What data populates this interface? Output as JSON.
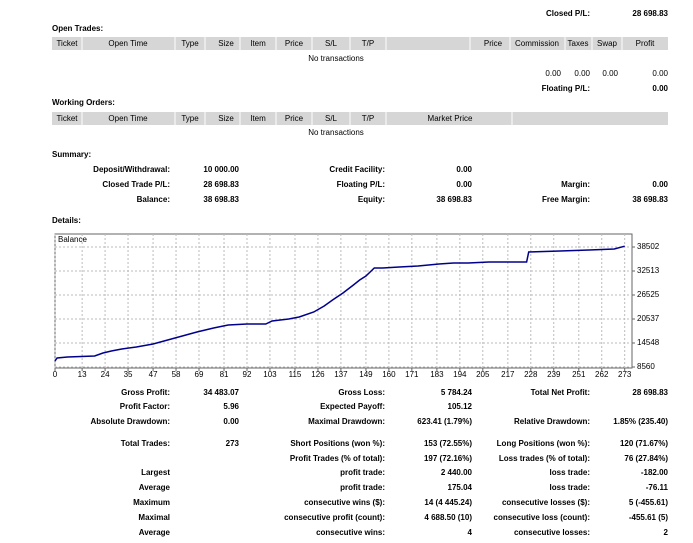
{
  "top": {
    "closed_pl": {
      "label": "Closed P/L:",
      "value": "28 698.83"
    }
  },
  "open_trades": {
    "title": "Open Trades:",
    "columns": [
      "Ticket",
      "Open Time",
      "Type",
      "Size",
      "Item",
      "Price",
      "S/L",
      "T/P",
      "Price",
      "Commission",
      "Taxes",
      "Swap",
      "Profit"
    ],
    "empty": "No transactions",
    "totals": [
      "0.00",
      "0.00",
      "0.00",
      "0.00"
    ],
    "floating_pl": {
      "label": "Floating P/L:",
      "value": "0.00"
    }
  },
  "working_orders": {
    "title": "Working Orders:",
    "columns": [
      "Ticket",
      "Open Time",
      "Type",
      "Size",
      "Item",
      "Price",
      "S/L",
      "T/P",
      "Market Price"
    ],
    "empty": "No transactions"
  },
  "summary": {
    "title": "Summary:",
    "rows": [
      [
        {
          "label": "Deposit/Withdrawal:",
          "value": "10 000.00"
        },
        {
          "label": "Credit Facility:",
          "value": "0.00"
        },
        null
      ],
      [
        {
          "label": "Closed Trade P/L:",
          "value": "28 698.83"
        },
        {
          "label": "Floating P/L:",
          "value": "0.00"
        },
        {
          "label": "Margin:",
          "value": "0.00"
        }
      ],
      [
        {
          "label": "Balance:",
          "value": "38 698.83"
        },
        {
          "label": "Equity:",
          "value": "38 698.83"
        },
        {
          "label": "Free Margin:",
          "value": "38 698.83"
        }
      ]
    ]
  },
  "details": {
    "title": "Details:",
    "rows": [
      [
        {
          "label": "Gross Profit:",
          "value": "34 483.07"
        },
        {
          "label": "Gross Loss:",
          "value": "5 784.24"
        },
        {
          "label": "Total Net Profit:",
          "value": "28 698.83"
        }
      ],
      [
        {
          "label": "Profit Factor:",
          "value": "5.96"
        },
        {
          "label": "Expected Payoff:",
          "value": "105.12"
        },
        null
      ],
      [
        {
          "label": "Absolute Drawdown:",
          "value": "0.00"
        },
        {
          "label": "Maximal Drawdown:",
          "value": "623.41 (1.79%)"
        },
        {
          "label": "Relative Drawdown:",
          "value": "1.85% (235.40)"
        }
      ],
      [
        {
          "label": "Total Trades:",
          "value": "273"
        },
        {
          "label": "Short Positions (won %):",
          "value": "153 (72.55%)"
        },
        {
          "label": "Long Positions (won %):",
          "value": "120 (71.67%)"
        }
      ],
      [
        null,
        {
          "label": "Profit Trades (% of total):",
          "value": "197 (72.16%)"
        },
        {
          "label": "Loss trades (% of total):",
          "value": "76 (27.84%)"
        }
      ],
      [
        {
          "label": "Largest"
        },
        {
          "label": "profit trade:",
          "value": "2 440.00"
        },
        {
          "label": "loss trade:",
          "value": "-182.00"
        }
      ],
      [
        {
          "label": "Average"
        },
        {
          "label": "profit trade:",
          "value": "175.04"
        },
        {
          "label": "loss trade:",
          "value": "-76.11"
        }
      ],
      [
        {
          "label": "Maximum"
        },
        {
          "label": "consecutive wins ($):",
          "value": "14 (4 445.24)"
        },
        {
          "label": "consecutive losses ($):",
          "value": "5 (-455.61)"
        }
      ],
      [
        {
          "label": "Maximal"
        },
        {
          "label": "consecutive profit (count):",
          "value": "4 688.50 (10)"
        },
        {
          "label": "consecutive loss (count):",
          "value": "-455.61 (5)"
        }
      ],
      [
        {
          "label": "Average"
        },
        {
          "label": "consecutive wins:",
          "value": "4"
        },
        {
          "label": "consecutive losses:",
          "value": "2"
        }
      ]
    ]
  },
  "chart_data": {
    "type": "line",
    "title": "Balance",
    "color": "#00008b",
    "grid": true,
    "x": [
      0,
      1,
      6,
      19,
      23,
      27,
      32,
      39,
      47,
      54,
      61,
      68,
      76,
      83,
      92,
      101,
      104,
      112,
      117,
      124,
      129,
      133,
      138,
      143,
      146,
      149,
      153,
      157,
      165,
      174,
      184,
      191,
      198,
      208,
      226,
      227,
      242,
      256,
      268,
      273
    ],
    "values": [
      10057,
      10806,
      11055,
      11305,
      12053,
      12552,
      13051,
      13550,
      14299,
      15297,
      16295,
      17293,
      18291,
      19039,
      19289,
      19289,
      20037,
      20536,
      21035,
      22283,
      23780,
      25277,
      27023,
      29019,
      30267,
      31265,
      33261,
      33261,
      33510,
      33760,
      34259,
      34508,
      34508,
      34758,
      34758,
      37253,
      37502,
      37752,
      38001,
      38699
    ],
    "xlim": [
      0,
      276.5
    ],
    "ylim": [
      8310,
      41745
    ],
    "xticks": [
      0,
      13,
      24,
      35,
      47,
      58,
      69,
      81,
      92,
      103,
      115,
      126,
      137,
      149,
      160,
      171,
      183,
      194,
      205,
      217,
      228,
      239,
      251,
      262,
      273
    ],
    "yticks": [
      8560,
      14548,
      20537,
      26525,
      32513,
      38502
    ]
  }
}
